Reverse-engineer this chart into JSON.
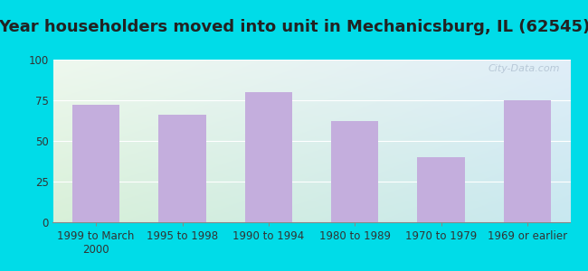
{
  "title": "Year householders moved into unit in Mechanicsburg, IL (62545)",
  "categories": [
    "1999 to March\n2000",
    "1995 to 1998",
    "1990 to 1994",
    "1980 to 1989",
    "1970 to 1979",
    "1969 or earlier"
  ],
  "values": [
    72,
    66,
    80,
    62,
    40,
    75
  ],
  "bar_color": "#c4aedd",
  "ylim": [
    0,
    100
  ],
  "yticks": [
    0,
    25,
    50,
    75,
    100
  ],
  "background_outer": "#00dce8",
  "bg_topleft": "#e8f4f0",
  "bg_topright": "#d8eef8",
  "bg_bottomleft": "#d8f0d8",
  "bg_bottomright": "#d8eef8",
  "title_fontsize": 13,
  "tick_fontsize": 8.5,
  "watermark": "City-Data.com"
}
